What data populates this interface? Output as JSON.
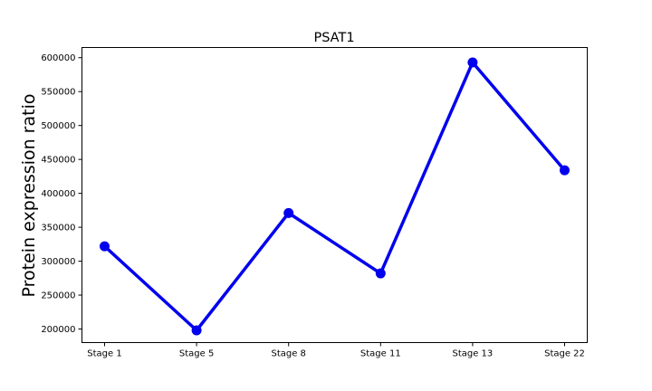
{
  "chart_data": {
    "type": "line",
    "title": "PSAT1",
    "xlabel": "",
    "ylabel": "Protein expression ratio",
    "categories": [
      "Stage 1",
      "Stage 5",
      "Stage 8",
      "Stage 11",
      "Stage 13",
      "Stage 22"
    ],
    "series": [
      {
        "values": [
          322000,
          198000,
          371000,
          282000,
          593000,
          434000
        ],
        "color": "#0000ee"
      }
    ],
    "ylim": [
      180000,
      615000
    ],
    "yticks": [
      200000,
      250000,
      300000,
      350000,
      400000,
      450000,
      500000,
      550000,
      600000
    ],
    "grid": false,
    "legend": "none"
  }
}
